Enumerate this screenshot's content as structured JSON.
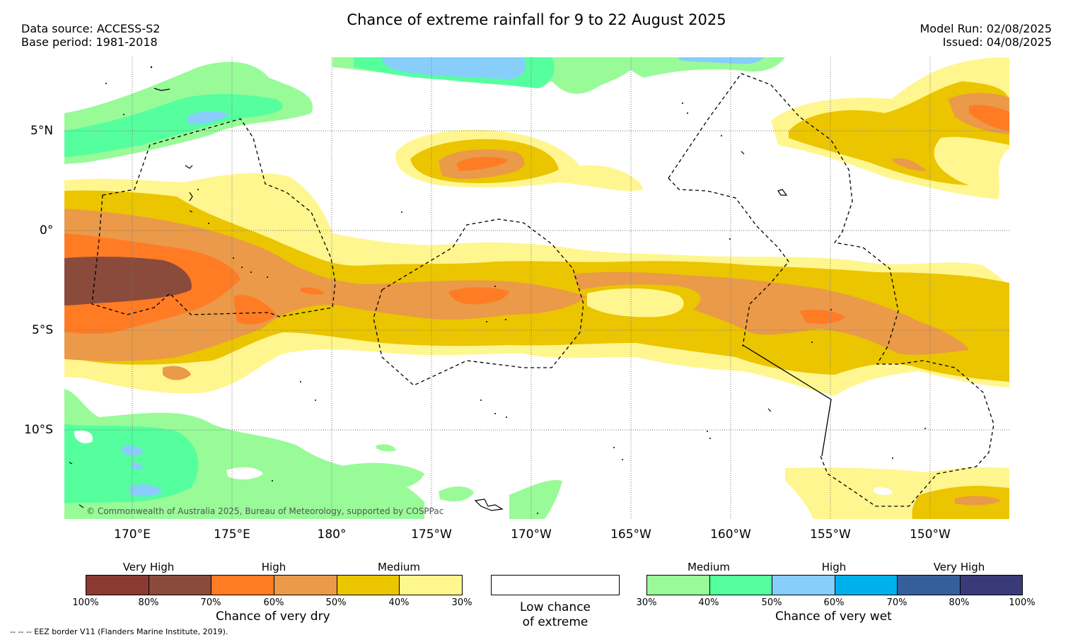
{
  "header": {
    "title": "Chance of extreme rainfall for 9 to 22 August 2025",
    "data_source": "Data source: ACCESS-S2",
    "base_period": "Base period: 1981-2018",
    "model_run": "Model Run: 02/08/2025",
    "issued": "Issued: 04/08/2025"
  },
  "map": {
    "lat_labels": [
      "5°N",
      "0°",
      "5°S",
      "10°S"
    ],
    "lon_labels": [
      "170°E",
      "175°E",
      "180°",
      "175°W",
      "170°W",
      "165°W",
      "160°W",
      "155°W",
      "150°W"
    ],
    "copyright": "© Commonwealth of Australia 2025, Bureau of Meteorology, supported by COSPPac"
  },
  "legend_dry": {
    "headers": [
      "Very High",
      "High",
      "Medium"
    ],
    "ticks": [
      "100%",
      "80%",
      "70%",
      "60%",
      "50%",
      "40%",
      "30%"
    ],
    "title": "Chance of very dry",
    "colors": [
      "#8b3a32",
      "#8a4b3c",
      "#ff7b24",
      "#ea9a48",
      "#ebc500",
      "#fff68f"
    ]
  },
  "legend_low": {
    "line1": "Low chance",
    "line2": "of extreme"
  },
  "legend_wet": {
    "headers": [
      "Medium",
      "High",
      "Very High"
    ],
    "ticks": [
      "30%",
      "40%",
      "50%",
      "60%",
      "70%",
      "80%",
      "100%"
    ],
    "title": "Chance of very wet",
    "colors": [
      "#98fb98",
      "#55ff9e",
      "#87cefa",
      "#00b0ec",
      "#345f9b",
      "#3b3a78"
    ]
  },
  "footer": "--  --  -- EEZ border V11 (Flanders Marine Institute, 2019)."
}
